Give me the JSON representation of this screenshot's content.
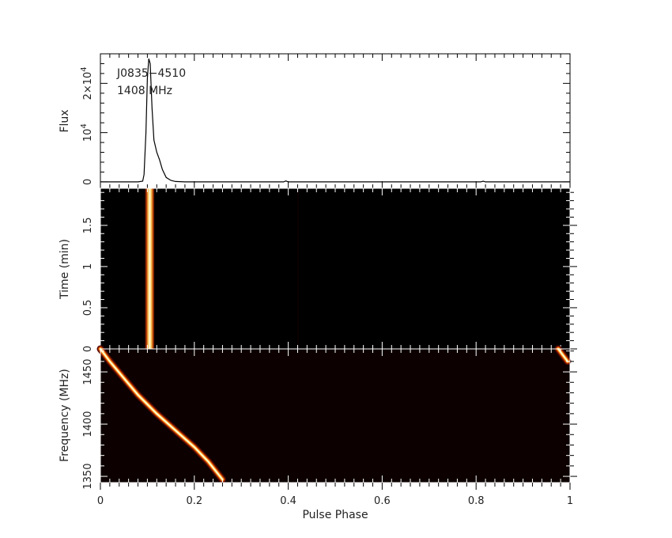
{
  "chart_data": [
    {
      "type": "line",
      "panel": "pulse-profile",
      "annotation": {
        "source": "J0835−4510",
        "freq": "1408 MHz"
      },
      "ylabel": "Flux",
      "xlim": [
        0,
        1
      ],
      "ylim": [
        -1300,
        26000
      ],
      "yticks": [
        {
          "value": 0,
          "base": "0",
          "exp": ""
        },
        {
          "value": 10000,
          "base": "10",
          "exp": "4"
        },
        {
          "value": 20000,
          "base": "2×10",
          "exp": "4"
        }
      ],
      "profile_points": [
        [
          0.0,
          0
        ],
        [
          0.08,
          0
        ],
        [
          0.09,
          150
        ],
        [
          0.093,
          1500
        ],
        [
          0.097,
          10000
        ],
        [
          0.1,
          21000
        ],
        [
          0.103,
          25000
        ],
        [
          0.106,
          24000
        ],
        [
          0.11,
          15000
        ],
        [
          0.114,
          8500
        ],
        [
          0.12,
          6000
        ],
        [
          0.126,
          4500
        ],
        [
          0.132,
          2500
        ],
        [
          0.14,
          900
        ],
        [
          0.15,
          300
        ],
        [
          0.16,
          80
        ],
        [
          0.18,
          0
        ],
        [
          0.39,
          0
        ],
        [
          0.395,
          200
        ],
        [
          0.4,
          0
        ],
        [
          0.81,
          0
        ],
        [
          0.815,
          150
        ],
        [
          0.82,
          0
        ],
        [
          1.0,
          0
        ]
      ]
    },
    {
      "type": "heatmap",
      "panel": "phase-time",
      "ylabel": "Time (min)",
      "xlim": [
        0,
        1
      ],
      "ylim": [
        0,
        1.95
      ],
      "yticks": [
        0,
        0.5,
        1,
        1.5
      ],
      "yticklabels": [
        "0",
        "0.5",
        "1",
        "1.5"
      ],
      "pulse_phase_center": 0.105,
      "pulse_width": 0.02
    },
    {
      "type": "heatmap",
      "panel": "phase-frequency",
      "ylabel": "Frequency (MHz)",
      "xlabel": "Pulse Phase",
      "xlim": [
        0,
        1
      ],
      "ylim": [
        1344,
        1472
      ],
      "yticks": [
        1350,
        1400,
        1450
      ],
      "yticklabels": [
        "1350",
        "1400",
        "1450"
      ],
      "xticks": [
        0,
        0.2,
        0.4,
        0.6,
        0.8,
        1
      ],
      "xticklabels": [
        "0",
        "0.2",
        "0.4",
        "0.6",
        "0.8",
        "1"
      ],
      "dispersed_track": [
        [
          0.0,
          1472
        ],
        [
          0.02,
          1460
        ],
        [
          0.05,
          1444
        ],
        [
          0.08,
          1428
        ],
        [
          0.12,
          1410
        ],
        [
          0.16,
          1394
        ],
        [
          0.2,
          1378
        ],
        [
          0.23,
          1364
        ],
        [
          0.26,
          1347
        ]
      ],
      "wrapped_track": [
        [
          0.975,
          1472
        ],
        [
          0.995,
          1460
        ]
      ]
    }
  ],
  "colors": {
    "axis": "#000000",
    "hot_core": "#ffffe0",
    "hot_mid": "#ffb020",
    "hot_low": "#c03000",
    "background": "#000000"
  }
}
